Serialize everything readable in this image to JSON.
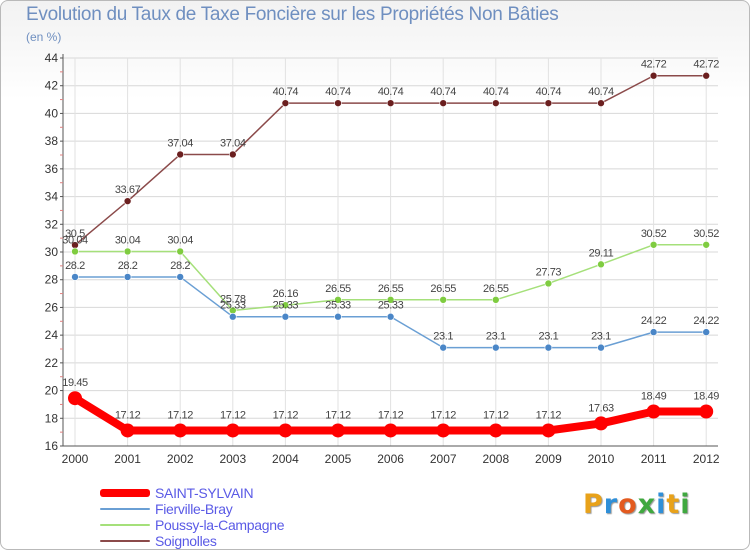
{
  "header": {
    "title": "Evolution du Taux de Taxe Foncière sur les Propriétés Non Bâties",
    "subtitle": "(en %)"
  },
  "logo": {
    "text": "Proxiti",
    "letters": [
      "P",
      "r",
      "o",
      "x",
      "i",
      "t",
      "i"
    ],
    "colors": [
      "#e8a21a",
      "#2f8fd8",
      "#e35a1f",
      "#3fa83f",
      "#2f8fd8",
      "#e8a21a",
      "#3fa83f"
    ]
  },
  "chart_data": {
    "type": "line",
    "title": "Evolution du Taux de Taxe Foncière sur les Propriétés Non Bâties",
    "subtitle": "(en %)",
    "xlabel": "",
    "ylabel": "(en %)",
    "x": [
      "2000",
      "2001",
      "2002",
      "2003",
      "2004",
      "2005",
      "2006",
      "2007",
      "2008",
      "2009",
      "2010",
      "2011",
      "2012"
    ],
    "ylim": [
      16,
      44
    ],
    "yticks": [
      16,
      18,
      20,
      22,
      24,
      26,
      28,
      30,
      32,
      34,
      36,
      38,
      40,
      42,
      44
    ],
    "grid": true,
    "legend_position": "bottom-left",
    "series": [
      {
        "name": "SAINT-SYLVAIN",
        "color": "#ff0000",
        "width": 8,
        "marker": 7,
        "values": [
          19.45,
          17.12,
          17.12,
          17.12,
          17.12,
          17.12,
          17.12,
          17.12,
          17.12,
          17.12,
          17.63,
          18.49,
          18.49
        ],
        "labels": [
          "19.45",
          "17.12",
          "17.12",
          "17.12",
          "17.12",
          "17.12",
          "17.12",
          "17.12",
          "17.12",
          "17.12",
          "17.63",
          "18.49",
          "18.49"
        ]
      },
      {
        "name": "Fierville-Bray",
        "color": "#6a9fd4",
        "marker_color": "#4a86c7",
        "width": 1.5,
        "marker": 3.5,
        "values": [
          28.2,
          28.2,
          28.2,
          25.33,
          25.33,
          25.33,
          25.33,
          23.1,
          23.1,
          23.1,
          23.1,
          24.22,
          24.22
        ],
        "labels": [
          "28.2",
          "28.2",
          "28.2",
          "25.33",
          "25.33",
          "25.33",
          "25.33",
          "23.1",
          "23.1",
          "23.1",
          "23.1",
          "24.22",
          "24.22"
        ]
      },
      {
        "name": "Poussy-la-Campagne",
        "color": "#a5e07a",
        "marker_color": "#7fcc40",
        "width": 1.5,
        "marker": 3.5,
        "values": [
          30.04,
          30.04,
          30.04,
          25.78,
          26.16,
          26.55,
          26.55,
          26.55,
          26.55,
          27.73,
          29.11,
          30.52,
          30.52
        ],
        "labels": [
          "30.04",
          "30.04",
          "30.04",
          "25.78",
          "26.16",
          "26.55",
          "26.55",
          "26.55",
          "26.55",
          "27.73",
          "29.11",
          "30.52",
          "30.52"
        ]
      },
      {
        "name": "Soignolles",
        "color": "#8b4a4a",
        "marker_color": "#6b1f1f",
        "width": 1.5,
        "marker": 3.5,
        "values": [
          30.5,
          33.67,
          37.04,
          37.04,
          40.74,
          40.74,
          40.74,
          40.74,
          40.74,
          40.74,
          40.74,
          42.72,
          42.72
        ],
        "labels": [
          "30.5",
          "33.67",
          "37.04",
          "37.04",
          "40.74",
          "40.74",
          "40.74",
          "40.74",
          "40.74",
          "40.74",
          "40.74",
          "42.72",
          "42.72"
        ]
      }
    ]
  }
}
